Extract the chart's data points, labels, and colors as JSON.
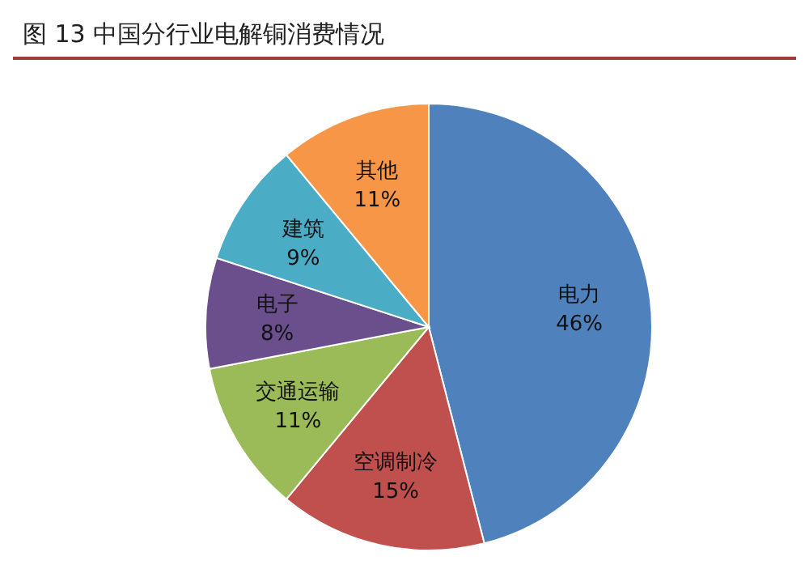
{
  "chart_data": {
    "type": "pie",
    "title": "图 13    中国分行业电解铜消费情况",
    "categories": [
      "电力",
      "空调制冷",
      "交通运输",
      "电子",
      "建筑",
      "其他"
    ],
    "values": [
      46,
      15,
      11,
      8,
      9,
      11
    ],
    "value_labels": [
      "46%",
      "15%",
      "11%",
      "8%",
      "9%",
      "11%"
    ],
    "colors": [
      "#4f81bd",
      "#c0504d",
      "#9bbb59",
      "#6b4f8c",
      "#4bacc6",
      "#f79646"
    ]
  }
}
